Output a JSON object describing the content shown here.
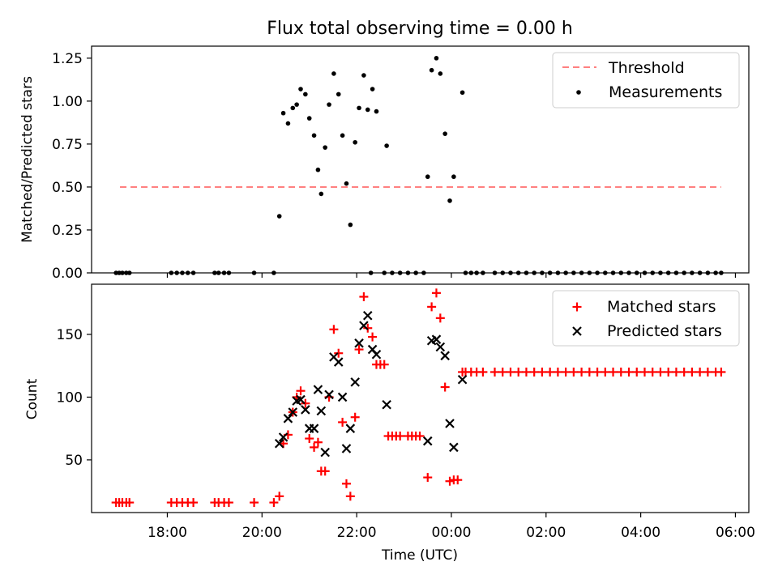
{
  "figure": {
    "title": "Flux total observing time = 0.00 h",
    "xlabel": "Time (UTC)"
  },
  "colors": {
    "threshold": "#ff8080",
    "measurements": "#000000",
    "matched": "#ff0000",
    "predicted": "#000000"
  },
  "chart_data": [
    {
      "type": "scatter",
      "name": "ratio",
      "title": "Flux total observing time = 0.00 h",
      "xlabel": "",
      "ylabel": "Matched/Predicted stars",
      "xlim": [
        "16:24",
        "06:17"
      ],
      "ylim": [
        0,
        1.32
      ],
      "y_ticks": [
        0.0,
        0.25,
        0.5,
        0.75,
        1.0,
        1.25
      ],
      "y_tick_labels": [
        "0.00",
        "0.25",
        "0.50",
        "0.75",
        "1.00",
        "1.25"
      ],
      "x_ticks_labels_shown": false,
      "legend": {
        "placement": "top-right",
        "entries": [
          "Threshold",
          "Measurements"
        ]
      },
      "threshold": {
        "name": "Threshold",
        "y": 0.5,
        "x_start": "17:00",
        "x_end": "05:42",
        "style": "dashed"
      },
      "series": [
        {
          "name": "Measurements",
          "marker": "dot",
          "points": [
            [
              "16:55",
              0
            ],
            [
              "16:59",
              0
            ],
            [
              "17:03",
              0
            ],
            [
              "17:08",
              0
            ],
            [
              "17:12",
              0
            ],
            [
              "18:05",
              0
            ],
            [
              "18:12",
              0
            ],
            [
              "18:19",
              0
            ],
            [
              "18:26",
              0
            ],
            [
              "18:33",
              0
            ],
            [
              "19:00",
              0
            ],
            [
              "19:05",
              0
            ],
            [
              "19:12",
              0
            ],
            [
              "19:18",
              0
            ],
            [
              "19:50",
              0
            ],
            [
              "20:15",
              0
            ],
            [
              "20:22",
              0.33
            ],
            [
              "20:27",
              0.93
            ],
            [
              "20:33",
              0.87
            ],
            [
              "20:39",
              0.96
            ],
            [
              "20:44",
              0.98
            ],
            [
              "20:49",
              1.07
            ],
            [
              "20:55",
              1.04
            ],
            [
              "21:00",
              0.9
            ],
            [
              "21:06",
              0.8
            ],
            [
              "21:11",
              0.6
            ],
            [
              "21:15",
              0.46
            ],
            [
              "21:20",
              0.73
            ],
            [
              "21:25",
              0.98
            ],
            [
              "21:31",
              1.16
            ],
            [
              "21:37",
              1.04
            ],
            [
              "21:42",
              0.8
            ],
            [
              "21:47",
              0.52
            ],
            [
              "21:52",
              0.28
            ],
            [
              "21:58",
              0.76
            ],
            [
              "22:03",
              0.96
            ],
            [
              "22:09",
              1.15
            ],
            [
              "22:14",
              0.95
            ],
            [
              "22:20",
              1.07
            ],
            [
              "22:25",
              0.94
            ],
            [
              "22:38",
              0.74
            ],
            [
              "22:18",
              0
            ],
            [
              "22:35",
              0
            ],
            [
              "22:45",
              0
            ],
            [
              "22:55",
              0
            ],
            [
              "23:05",
              0
            ],
            [
              "23:15",
              0
            ],
            [
              "23:25",
              0
            ],
            [
              "23:30",
              0.56
            ],
            [
              "23:35",
              1.18
            ],
            [
              "23:41",
              1.25
            ],
            [
              "23:46",
              1.16
            ],
            [
              "23:52",
              0.81
            ],
            [
              "23:58",
              0.42
            ],
            [
              "00:03",
              0.56
            ],
            [
              "00:14",
              1.05
            ],
            [
              "00:18",
              0
            ],
            [
              "00:25",
              0
            ],
            [
              "00:32",
              0
            ],
            [
              "00:40",
              0
            ],
            [
              "00:55",
              0
            ],
            [
              "01:05",
              0
            ],
            [
              "01:15",
              0
            ],
            [
              "01:25",
              0
            ],
            [
              "01:35",
              0
            ],
            [
              "01:45",
              0
            ],
            [
              "01:55",
              0
            ],
            [
              "02:05",
              0
            ],
            [
              "02:15",
              0
            ],
            [
              "02:25",
              0
            ],
            [
              "02:35",
              0
            ],
            [
              "02:45",
              0
            ],
            [
              "02:55",
              0
            ],
            [
              "03:05",
              0
            ],
            [
              "03:15",
              0
            ],
            [
              "03:25",
              0
            ],
            [
              "03:35",
              0
            ],
            [
              "03:45",
              0
            ],
            [
              "03:55",
              0
            ],
            [
              "04:05",
              0
            ],
            [
              "04:15",
              0
            ],
            [
              "04:25",
              0
            ],
            [
              "04:35",
              0
            ],
            [
              "04:45",
              0
            ],
            [
              "04:55",
              0
            ],
            [
              "05:05",
              0
            ],
            [
              "05:15",
              0
            ],
            [
              "05:25",
              0
            ],
            [
              "05:35",
              0
            ],
            [
              "05:42",
              0
            ]
          ]
        }
      ]
    },
    {
      "type": "scatter",
      "name": "counts",
      "title": "",
      "xlabel": "Time (UTC)",
      "ylabel": "Count",
      "xlim": [
        "16:24",
        "06:17"
      ],
      "ylim": [
        8,
        190
      ],
      "y_ticks": [
        50,
        100,
        150
      ],
      "y_tick_labels": [
        "50",
        "100",
        "150"
      ],
      "x_ticks": [
        "18:00",
        "20:00",
        "22:00",
        "00:00",
        "02:00",
        "04:00",
        "06:00"
      ],
      "legend": {
        "placement": "top-right",
        "entries": [
          "Matched stars",
          "Predicted stars"
        ]
      },
      "series": [
        {
          "name": "Matched stars",
          "marker": "plus",
          "points": [
            [
              "16:55",
              16
            ],
            [
              "16:59",
              16
            ],
            [
              "17:03",
              16
            ],
            [
              "17:08",
              16
            ],
            [
              "17:12",
              16
            ],
            [
              "18:05",
              16
            ],
            [
              "18:12",
              16
            ],
            [
              "18:19",
              16
            ],
            [
              "18:26",
              16
            ],
            [
              "18:33",
              16
            ],
            [
              "19:00",
              16
            ],
            [
              "19:05",
              16
            ],
            [
              "19:12",
              16
            ],
            [
              "19:18",
              16
            ],
            [
              "19:50",
              16
            ],
            [
              "20:15",
              16
            ],
            [
              "20:22",
              21
            ],
            [
              "20:27",
              63
            ],
            [
              "20:33",
              70
            ],
            [
              "20:39",
              88
            ],
            [
              "20:44",
              100
            ],
            [
              "20:49",
              105
            ],
            [
              "20:55",
              95
            ],
            [
              "21:00",
              67
            ],
            [
              "21:06",
              60
            ],
            [
              "21:11",
              64
            ],
            [
              "21:15",
              41
            ],
            [
              "21:20",
              41
            ],
            [
              "21:25",
              100
            ],
            [
              "21:31",
              154
            ],
            [
              "21:37",
              135
            ],
            [
              "21:42",
              80
            ],
            [
              "21:47",
              31
            ],
            [
              "21:52",
              21
            ],
            [
              "21:58",
              84
            ],
            [
              "22:03",
              138
            ],
            [
              "22:09",
              180
            ],
            [
              "22:14",
              155
            ],
            [
              "22:20",
              148
            ],
            [
              "22:25",
              126
            ],
            [
              "22:30",
              126
            ],
            [
              "22:35",
              126
            ],
            [
              "22:40",
              69
            ],
            [
              "22:45",
              69
            ],
            [
              "22:50",
              69
            ],
            [
              "22:55",
              69
            ],
            [
              "23:05",
              69
            ],
            [
              "23:10",
              69
            ],
            [
              "23:15",
              69
            ],
            [
              "23:20",
              69
            ],
            [
              "23:30",
              36
            ],
            [
              "23:35",
              172
            ],
            [
              "23:41",
              183
            ],
            [
              "23:46",
              163
            ],
            [
              "23:52",
              108
            ],
            [
              "23:58",
              33
            ],
            [
              "00:03",
              34
            ],
            [
              "00:08",
              34
            ],
            [
              "00:14",
              120
            ],
            [
              "00:18",
              120
            ],
            [
              "00:25",
              120
            ],
            [
              "00:32",
              120
            ],
            [
              "00:40",
              120
            ],
            [
              "00:55",
              120
            ],
            [
              "01:05",
              120
            ],
            [
              "01:15",
              120
            ],
            [
              "01:25",
              120
            ],
            [
              "01:35",
              120
            ],
            [
              "01:45",
              120
            ],
            [
              "01:55",
              120
            ],
            [
              "02:05",
              120
            ],
            [
              "02:15",
              120
            ],
            [
              "02:25",
              120
            ],
            [
              "02:35",
              120
            ],
            [
              "02:45",
              120
            ],
            [
              "02:55",
              120
            ],
            [
              "03:05",
              120
            ],
            [
              "03:15",
              120
            ],
            [
              "03:25",
              120
            ],
            [
              "03:35",
              120
            ],
            [
              "03:45",
              120
            ],
            [
              "03:55",
              120
            ],
            [
              "04:05",
              120
            ],
            [
              "04:15",
              120
            ],
            [
              "04:25",
              120
            ],
            [
              "04:35",
              120
            ],
            [
              "04:45",
              120
            ],
            [
              "04:55",
              120
            ],
            [
              "05:05",
              120
            ],
            [
              "05:15",
              120
            ],
            [
              "05:25",
              120
            ],
            [
              "05:35",
              120
            ],
            [
              "05:42",
              120
            ]
          ]
        },
        {
          "name": "Predicted stars",
          "marker": "x",
          "points": [
            [
              "20:22",
              63
            ],
            [
              "20:27",
              68
            ],
            [
              "20:33",
              83
            ],
            [
              "20:39",
              88
            ],
            [
              "20:44",
              97
            ],
            [
              "20:49",
              98
            ],
            [
              "20:55",
              90
            ],
            [
              "21:00",
              75
            ],
            [
              "21:06",
              75
            ],
            [
              "21:11",
              106
            ],
            [
              "21:15",
              89
            ],
            [
              "21:20",
              56
            ],
            [
              "21:25",
              102
            ],
            [
              "21:31",
              132
            ],
            [
              "21:37",
              128
            ],
            [
              "21:42",
              100
            ],
            [
              "21:47",
              59
            ],
            [
              "21:52",
              75
            ],
            [
              "21:58",
              112
            ],
            [
              "22:03",
              143
            ],
            [
              "22:09",
              157
            ],
            [
              "22:14",
              165
            ],
            [
              "22:20",
              138
            ],
            [
              "22:25",
              134
            ],
            [
              "22:38",
              94
            ],
            [
              "23:30",
              65
            ],
            [
              "23:35",
              145
            ],
            [
              "23:41",
              146
            ],
            [
              "23:46",
              140
            ],
            [
              "23:52",
              133
            ],
            [
              "23:58",
              79
            ],
            [
              "00:03",
              60
            ],
            [
              "00:14",
              114
            ]
          ]
        }
      ]
    }
  ]
}
